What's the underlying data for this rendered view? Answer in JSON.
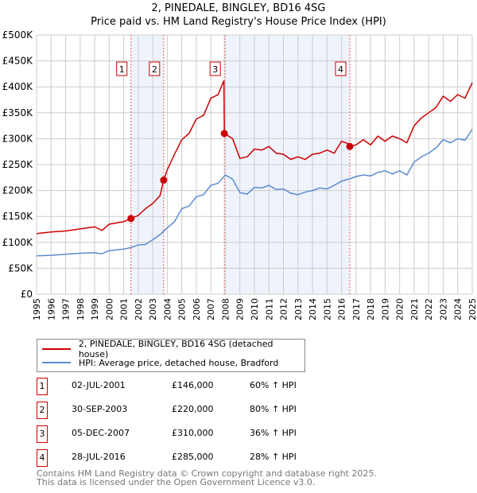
{
  "chart_data": {
    "type": "line",
    "title": "2, PINEDALE, BINGLEY, BD16 4SG",
    "subtitle": "Price paid vs. HM Land Registry's House Price Index (HPI)",
    "xlim": [
      1995,
      2025
    ],
    "ylim": [
      0,
      500000
    ],
    "x_ticks": [
      "1995",
      "1996",
      "1997",
      "1998",
      "1999",
      "2000",
      "2001",
      "2002",
      "2003",
      "2004",
      "2005",
      "2006",
      "2007",
      "2008",
      "2009",
      "2010",
      "2011",
      "2012",
      "2013",
      "2014",
      "2015",
      "2016",
      "2017",
      "2018",
      "2019",
      "2020",
      "2021",
      "2022",
      "2023",
      "2024",
      "2025"
    ],
    "y_ticks": [
      {
        "v": 0,
        "l": "£0"
      },
      {
        "v": 50000,
        "l": "£50K"
      },
      {
        "v": 100000,
        "l": "£100K"
      },
      {
        "v": 150000,
        "l": "£150K"
      },
      {
        "v": 200000,
        "l": "£200K"
      },
      {
        "v": 250000,
        "l": "£250K"
      },
      {
        "v": 300000,
        "l": "£300K"
      },
      {
        "v": 350000,
        "l": "£350K"
      },
      {
        "v": 400000,
        "l": "£400K"
      },
      {
        "v": 450000,
        "l": "£450K"
      },
      {
        "v": 500000,
        "l": "£500K"
      }
    ],
    "grid": true,
    "series": [
      {
        "name": "2, PINEDALE, BINGLEY, BD16 4SG (detached house)",
        "color": "#cc0000",
        "x": [
          1995,
          1996,
          1997,
          1998,
          1999,
          1999.5,
          2000,
          2001,
          2001.5,
          2002,
          2002.5,
          2003,
          2003.5,
          2003.75,
          2004,
          2004.5,
          2005,
          2005.5,
          2006,
          2006.5,
          2007,
          2007.5,
          2007.9,
          2007.93,
          2008.5,
          2009,
          2009.5,
          2010,
          2010.5,
          2011,
          2011.5,
          2012,
          2012.5,
          2013,
          2013.5,
          2014,
          2014.5,
          2015,
          2015.5,
          2016,
          2016.5,
          2016.57,
          2017,
          2017.5,
          2018,
          2018.5,
          2019,
          2019.5,
          2020,
          2020.5,
          2021,
          2021.5,
          2022,
          2022.5,
          2023,
          2023.5,
          2024,
          2024.5,
          2025
        ],
        "y": [
          117000,
          120000,
          122000,
          126000,
          130000,
          123000,
          135000,
          140000,
          146000,
          152000,
          165000,
          175000,
          190000,
          220000,
          240000,
          270000,
          298000,
          310000,
          338000,
          345000,
          378000,
          385000,
          412000,
          310000,
          300000,
          262000,
          265000,
          280000,
          278000,
          285000,
          272000,
          270000,
          260000,
          265000,
          260000,
          270000,
          272000,
          278000,
          272000,
          295000,
          290000,
          285000,
          288000,
          298000,
          288000,
          305000,
          295000,
          305000,
          300000,
          292000,
          325000,
          340000,
          350000,
          360000,
          382000,
          372000,
          385000,
          378000,
          408000
        ]
      },
      {
        "name": "HPI: Average price, detached house, Bradford",
        "color": "#5b8bd0",
        "x": [
          1995,
          1996,
          1997,
          1998,
          1999,
          1999.5,
          2000,
          2001,
          2001.5,
          2002,
          2002.5,
          2003,
          2003.5,
          2004,
          2004.5,
          2005,
          2005.5,
          2006,
          2006.5,
          2007,
          2007.5,
          2008,
          2008.5,
          2009,
          2009.5,
          2010,
          2010.5,
          2011,
          2011.5,
          2012,
          2012.5,
          2013,
          2013.5,
          2014,
          2014.5,
          2015,
          2015.5,
          2016,
          2016.5,
          2017,
          2017.5,
          2018,
          2018.5,
          2019,
          2019.5,
          2020,
          2020.5,
          2021,
          2021.5,
          2022,
          2022.5,
          2023,
          2023.5,
          2024,
          2024.5,
          2025
        ],
        "y": [
          74000,
          75000,
          77000,
          79000,
          80000,
          78000,
          84000,
          87000,
          90000,
          95000,
          96000,
          105000,
          115000,
          128000,
          140000,
          165000,
          170000,
          188000,
          192000,
          210000,
          214000,
          230000,
          222000,
          196000,
          193000,
          206000,
          205000,
          210000,
          202000,
          203000,
          195000,
          192000,
          197000,
          200000,
          205000,
          203000,
          210000,
          218000,
          222000,
          227000,
          230000,
          228000,
          235000,
          238000,
          232000,
          238000,
          230000,
          255000,
          265000,
          272000,
          282000,
          298000,
          292000,
          300000,
          297000,
          318000
        ]
      }
    ],
    "shaded": [
      [
        2001.5,
        2003.75
      ],
      [
        2007.93,
        2016.57
      ]
    ],
    "sales": [
      {
        "n": "1",
        "x": 2001.5,
        "date": "02-JUL-2001",
        "price": 146000,
        "price_label": "£146,000",
        "hpi": "60% ↑ HPI"
      },
      {
        "n": "2",
        "x": 2003.75,
        "date": "30-SEP-2003",
        "price": 220000,
        "price_label": "£220,000",
        "hpi": "80% ↑ HPI"
      },
      {
        "n": "3",
        "x": 2007.93,
        "date": "05-DEC-2007",
        "price": 310000,
        "price_label": "£310,000",
        "hpi": "36% ↑ HPI"
      },
      {
        "n": "4",
        "x": 2016.57,
        "date": "28-JUL-2016",
        "price": 285000,
        "price_label": "£285,000",
        "hpi": "28% ↑ HPI"
      }
    ],
    "legend_position": "below"
  },
  "footer": {
    "line1": "Contains HM Land Registry data © Crown copyright and database right 2025.",
    "line2": "This data is licensed under the Open Government Licence v3.0."
  }
}
